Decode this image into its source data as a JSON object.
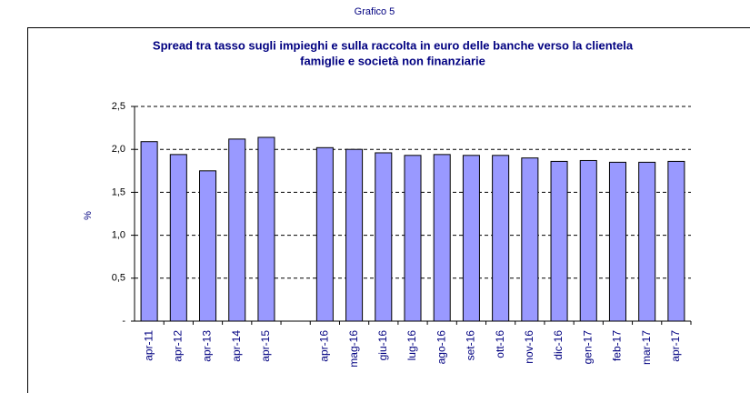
{
  "chart_data": {
    "type": "bar",
    "caption": "Grafico 5",
    "title": [
      "Spread tra tasso sugli impieghi e sulla raccolta in euro delle banche verso la clientela",
      "famiglie e società non finanziarie"
    ],
    "y_label": "%",
    "categories": [
      "apr-11",
      "apr-12",
      "apr-13",
      "apr-14",
      "apr-15",
      null,
      "apr-16",
      "mag-16",
      "giu-16",
      "lug-16",
      "ago-16",
      "set-16",
      "ott-16",
      "nov-16",
      "dic-16",
      "gen-17",
      "feb-17",
      "mar-17",
      "apr-17"
    ],
    "values": [
      2.09,
      1.94,
      1.75,
      2.12,
      2.14,
      null,
      2.02,
      2.0,
      1.96,
      1.93,
      1.94,
      1.93,
      1.93,
      1.9,
      1.86,
      1.87,
      1.85,
      1.85,
      1.86
    ],
    "color": "#9999ff",
    "ylim": [
      0,
      2.5
    ],
    "yticks": [
      {
        "value": 0,
        "label": "-"
      },
      {
        "value": 0.5,
        "label": "0,5"
      },
      {
        "value": 1,
        "label": "1,0"
      },
      {
        "value": 1.5,
        "label": "1,5"
      },
      {
        "value": 2,
        "label": "2,0"
      },
      {
        "value": 2.5,
        "label": "2,5"
      }
    ],
    "grid": true
  }
}
